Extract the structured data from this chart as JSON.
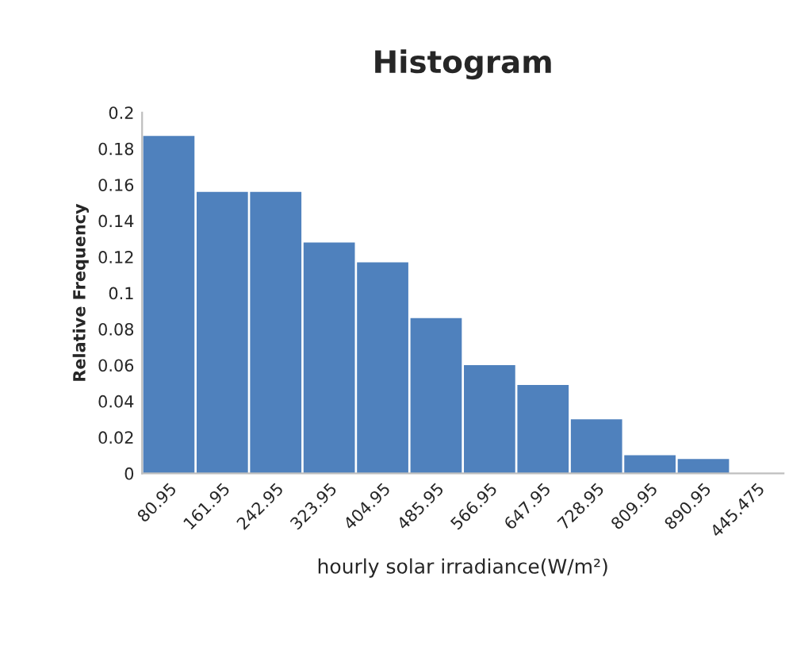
{
  "chart_data": {
    "type": "bar",
    "title": "Histogram",
    "xlabel": "hourly solar irradiance(W/m²)",
    "ylabel": "Relative Frequency",
    "categories": [
      "80.95",
      "161.95",
      "242.95",
      "323.95",
      "404.95",
      "485.95",
      "566.95",
      "647.95",
      "728.95",
      "809.95",
      "890.95",
      "445.475"
    ],
    "values": [
      0.187,
      0.156,
      0.156,
      0.128,
      0.117,
      0.086,
      0.06,
      0.049,
      0.03,
      0.01,
      0.008,
      0
    ],
    "color": "#4f81bd",
    "ylim": [
      0,
      0.2
    ],
    "yticks": [
      0,
      0.02,
      0.04,
      0.06,
      0.08,
      0.1,
      0.12,
      0.14,
      0.16,
      0.18,
      0.2
    ],
    "grid": false,
    "legend": false
  }
}
